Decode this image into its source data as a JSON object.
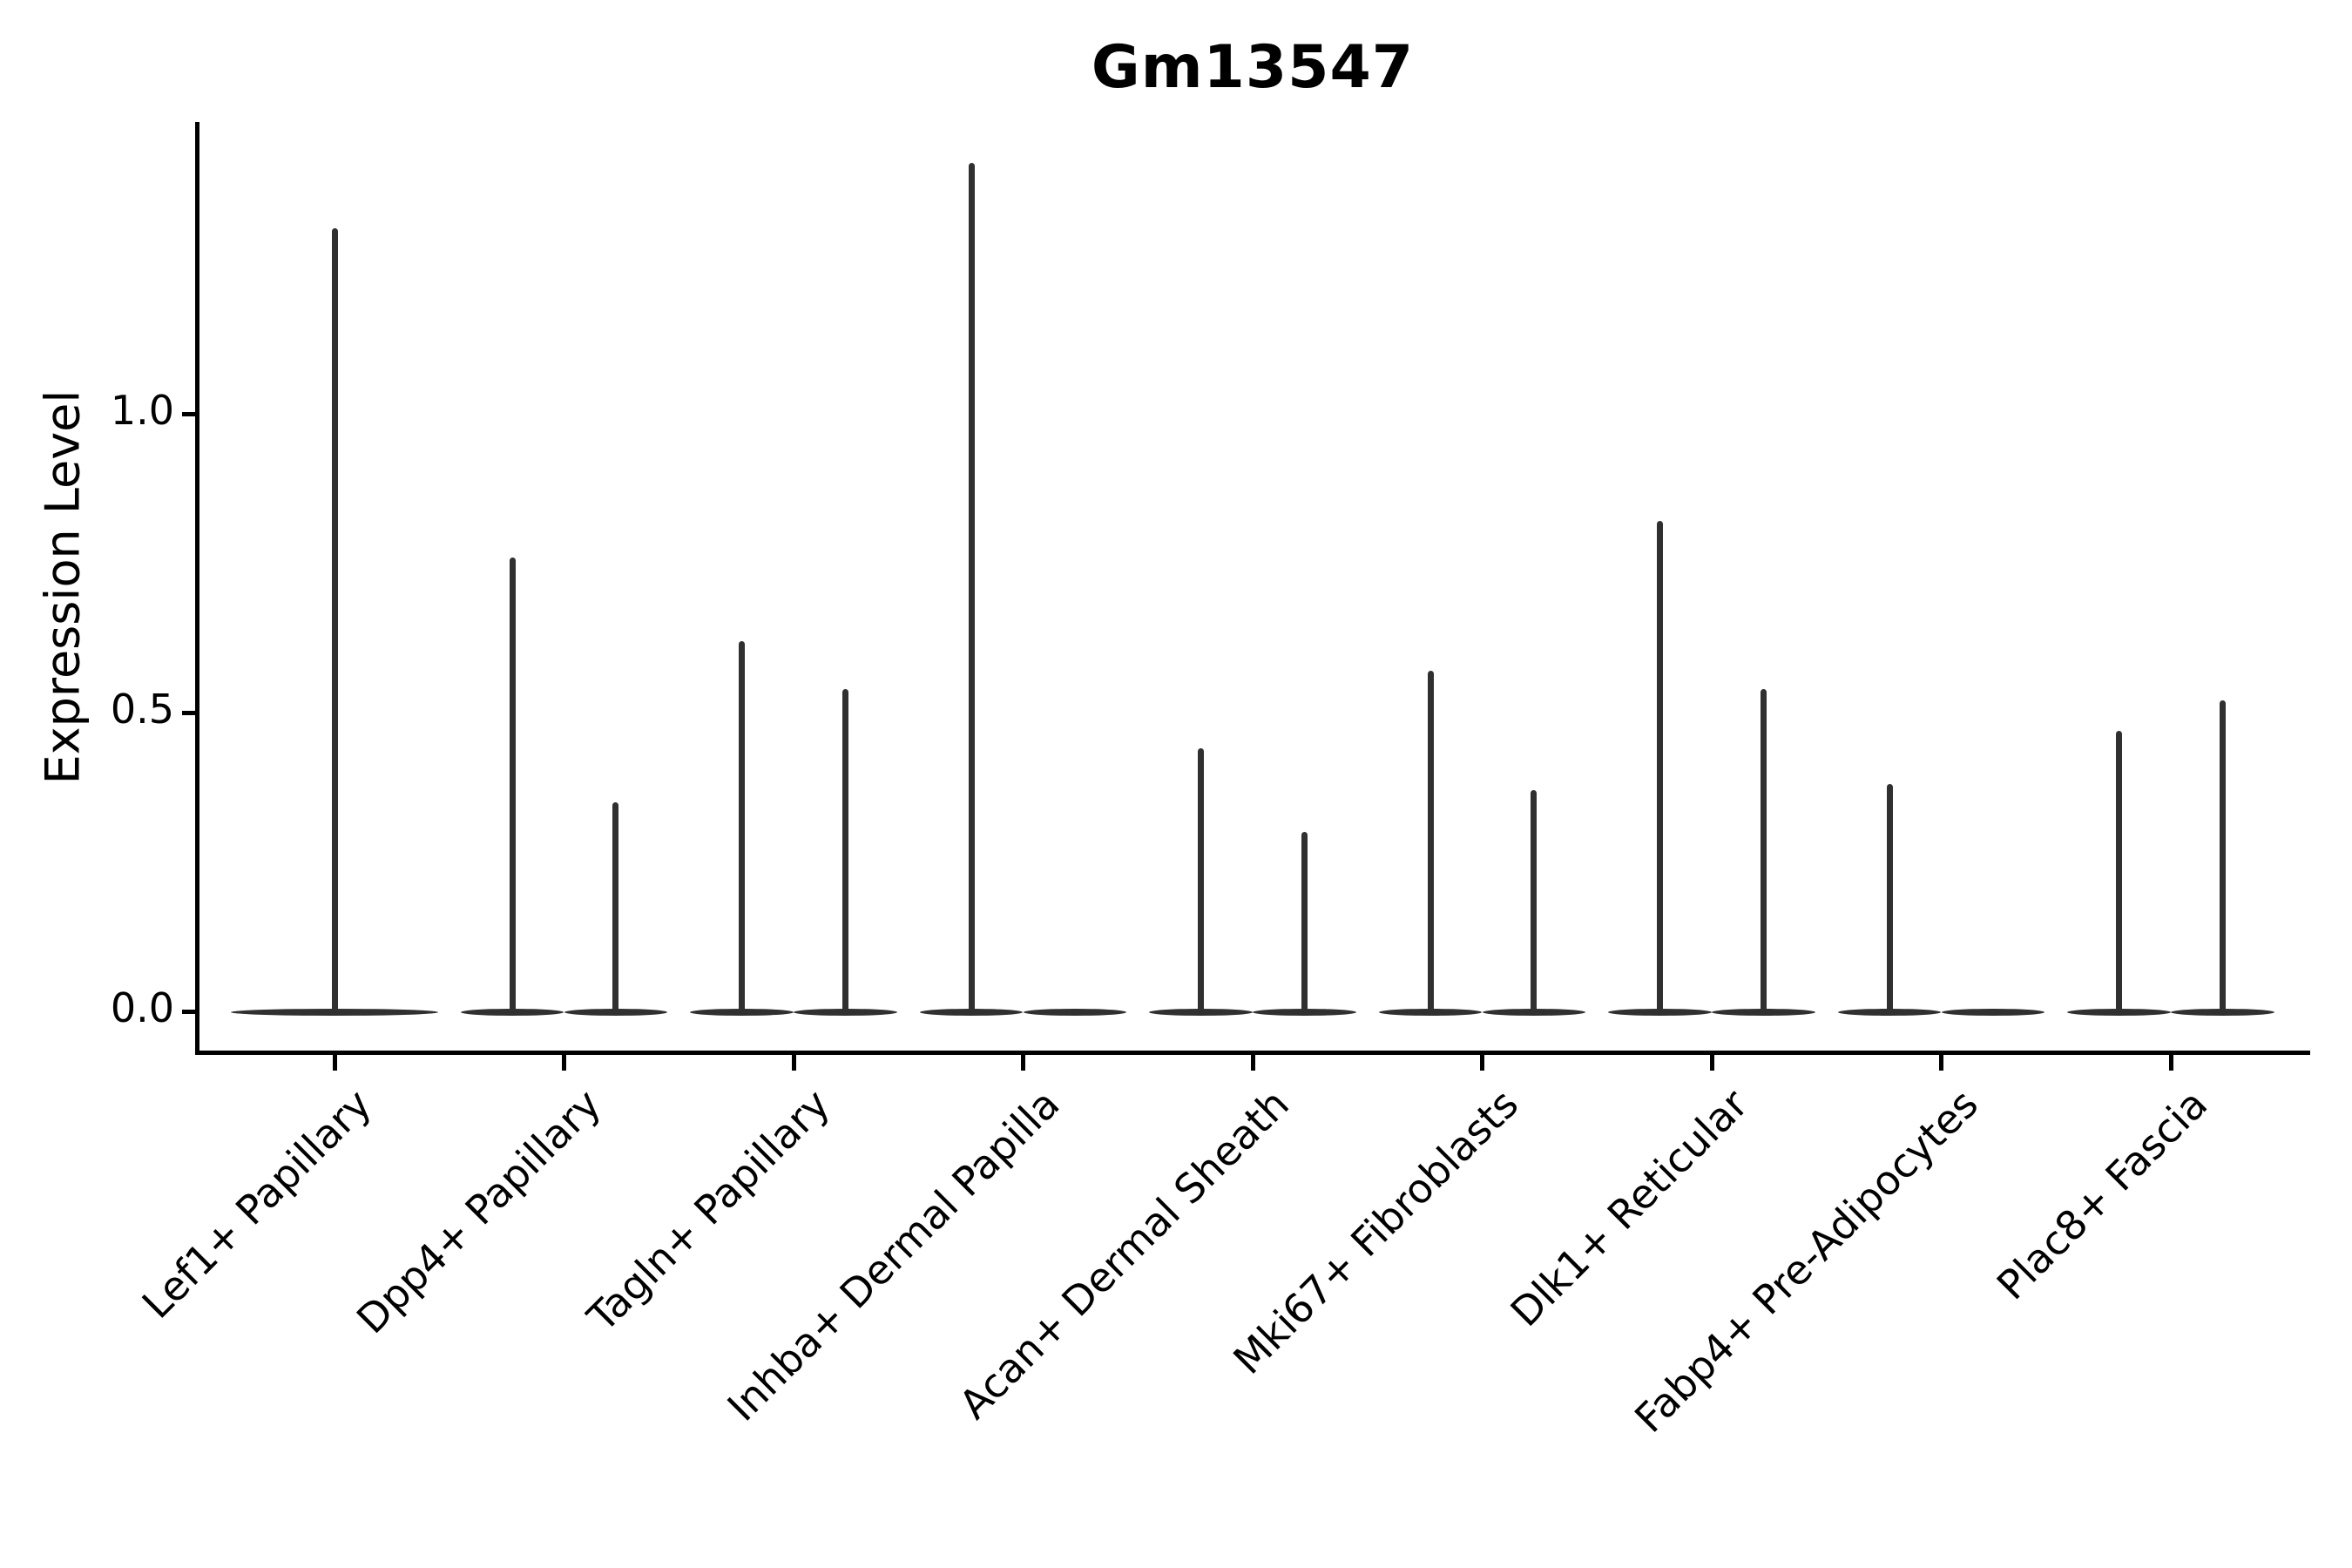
{
  "chart_data": {
    "type": "violin",
    "title": "Gm13547",
    "ylabel": "Expression Level",
    "xlabel": "",
    "ylim": [
      -0.07,
      1.49
    ],
    "grid": false,
    "legend": "none",
    "yticks": [
      {
        "value": 0.0,
        "label": "0.0"
      },
      {
        "value": 0.5,
        "label": "0.5"
      },
      {
        "value": 1.0,
        "label": "1.0"
      }
    ],
    "description": "Split/dodged violin plot of single-cell expression; each violin is a flat lens at 0 (most cells zero) with a thin density spike rising to the maximum expression value.",
    "categories": [
      {
        "label": "Lef1+ Papillary",
        "violins": [
          {
            "side": "full",
            "max_expression": 1.31
          }
        ]
      },
      {
        "label": "Dpp4+ Papillary",
        "violins": [
          {
            "side": "left",
            "max_expression": 0.76
          },
          {
            "side": "right",
            "max_expression": 0.35
          }
        ]
      },
      {
        "label": "Tagln+ Papillary",
        "violins": [
          {
            "side": "left",
            "max_expression": 0.62
          },
          {
            "side": "right",
            "max_expression": 0.54
          }
        ]
      },
      {
        "label": "Inhba+ Dermal Papilla",
        "violins": [
          {
            "side": "left",
            "max_expression": 1.42
          },
          {
            "side": "right",
            "max_expression": 0
          }
        ]
      },
      {
        "label": "Acan+ Dermal Sheath",
        "violins": [
          {
            "side": "left",
            "max_expression": 0.44
          },
          {
            "side": "right",
            "max_expression": 0.3
          }
        ]
      },
      {
        "label": "Mki67+ Fibroblasts",
        "violins": [
          {
            "side": "left",
            "max_expression": 0.57
          },
          {
            "side": "right",
            "max_expression": 0.37
          }
        ]
      },
      {
        "label": "Dlk1+ Reticular",
        "violins": [
          {
            "side": "left",
            "max_expression": 0.82
          },
          {
            "side": "right",
            "max_expression": 0.54
          }
        ]
      },
      {
        "label": "Fabp4+ Pre-Adipocytes",
        "violins": [
          {
            "side": "left",
            "max_expression": 0.38
          },
          {
            "side": "right",
            "max_expression": 0
          }
        ]
      },
      {
        "label": "Plac8+ Fascia",
        "violins": [
          {
            "side": "left",
            "max_expression": 0.47
          },
          {
            "side": "right",
            "max_expression": 0.52
          }
        ]
      }
    ],
    "colors": {
      "violin_stroke": "#303030",
      "axis": "#000000",
      "text": "#000000",
      "background": "#ffffff"
    }
  }
}
